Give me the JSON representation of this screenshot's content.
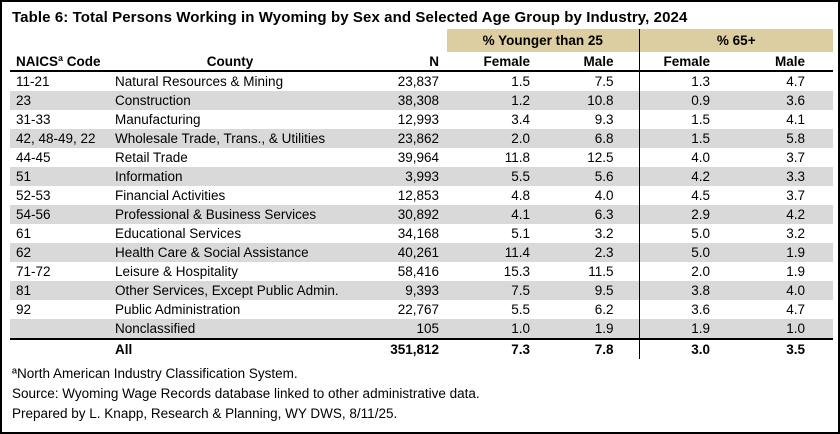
{
  "title": "Table 6: Total Persons Working in Wyoming by Sex and Selected Age Group by Industry, 2024",
  "colors": {
    "group_header_bg": "#DCCEA0",
    "stripe": "#D9D9D9",
    "border": "#000000"
  },
  "chart_data": {
    "type": "table",
    "title": "Table 6: Total Persons Working in Wyoming by Sex and Selected Age Group by Industry, 2024",
    "column_groups": [
      {
        "label": "% Younger than 25",
        "span": 2
      },
      {
        "label": "% 65+",
        "span": 2
      }
    ],
    "columns": [
      "NAICSª Code",
      "County",
      "N",
      "Female",
      "Male",
      "Female",
      "Male"
    ],
    "rows": [
      [
        "11-21",
        "Natural Resources & Mining",
        "23,837",
        "1.5",
        "7.5",
        "1.3",
        "4.7"
      ],
      [
        "23",
        "Construction",
        "38,308",
        "1.2",
        "10.8",
        "0.9",
        "3.6"
      ],
      [
        "31-33",
        "Manufacturing",
        "12,993",
        "3.4",
        "9.3",
        "1.5",
        "4.1"
      ],
      [
        "42, 48-49, 22",
        "Wholesale Trade, Trans., & Utilities",
        "23,862",
        "2.0",
        "6.8",
        "1.5",
        "5.8"
      ],
      [
        "44-45",
        "Retail Trade",
        "39,964",
        "11.8",
        "12.5",
        "4.0",
        "3.7"
      ],
      [
        "51",
        "Information",
        "3,993",
        "5.5",
        "5.6",
        "4.2",
        "3.3"
      ],
      [
        "52-53",
        "Financial Activities",
        "12,853",
        "4.8",
        "4.0",
        "4.5",
        "3.7"
      ],
      [
        "54-56",
        "Professional & Business Services",
        "30,892",
        "4.1",
        "6.3",
        "2.9",
        "4.2"
      ],
      [
        "61",
        "Educational Services",
        "34,168",
        "5.1",
        "3.2",
        "5.0",
        "3.2"
      ],
      [
        "62",
        "Health Care & Social Assistance",
        "40,261",
        "11.4",
        "2.3",
        "5.0",
        "1.9"
      ],
      [
        "71-72",
        "Leisure & Hospitality",
        "58,416",
        "15.3",
        "11.5",
        "2.0",
        "1.9"
      ],
      [
        "81",
        "Other Services, Except Public Admin.",
        "9,393",
        "7.5",
        "9.5",
        "3.8",
        "4.0"
      ],
      [
        "92",
        "Public Administration",
        "22,767",
        "5.5",
        "6.2",
        "3.6",
        "4.7"
      ],
      [
        "",
        "Nonclassified",
        "105",
        "1.0",
        "1.9",
        "1.9",
        "1.0"
      ]
    ],
    "total_row": [
      "",
      "All",
      "351,812",
      "7.3",
      "7.8",
      "3.0",
      "3.5"
    ]
  },
  "footnotes": {
    "naics": "ªNorth American Industry Classification System.",
    "source": "Source: Wyoming Wage Records database linked to other administrative data.",
    "prepared": "Prepared by L. Knapp, Research & Planning, WY DWS, 8/11/25."
  }
}
